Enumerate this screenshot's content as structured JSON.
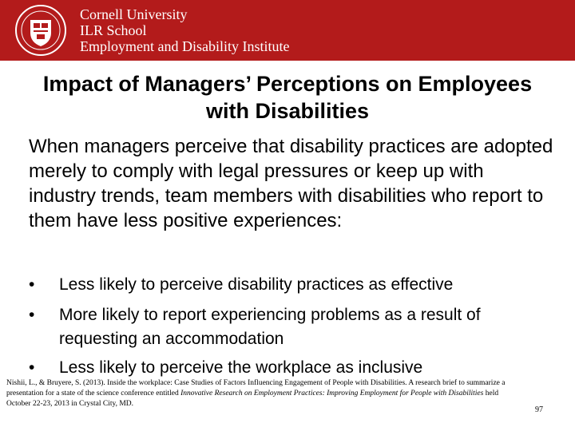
{
  "header": {
    "org_lines": [
      "Cornell University",
      "ILR School",
      "Employment and Disability Institute"
    ],
    "colors": {
      "brand": "#b31b1b"
    },
    "seal_icon": "cornell-seal-icon"
  },
  "slide": {
    "title": "Impact of Managers’ Perceptions  on Employees with Disabilities",
    "intro": "When managers perceive that disability practices are adopted merely to comply with legal pressures or keep up with industry trends, team members with disabilities who report to them have less positive experiences:",
    "bullets": [
      "Less likely to perceive disability practices as effective",
      "More likely to report experiencing problems as a result of requesting an accommodation",
      "Less likely to perceive the workplace as inclusive"
    ],
    "bullet_marker": "•"
  },
  "citation": {
    "part1": "Nishii, L., & Bruyere, S. (2013).  Inside the workplace: Case Studies of Factors Influencing Engagement of People with Disabilities.  A research brief to summarize a presentation for a state of the science conference entitled ",
    "italic": "Innovative Research on Employment Practices: Improving Employment for People with Disabilities",
    "part2": " held October 22-23, 2013 in Crystal City, MD."
  },
  "page_number": "97"
}
